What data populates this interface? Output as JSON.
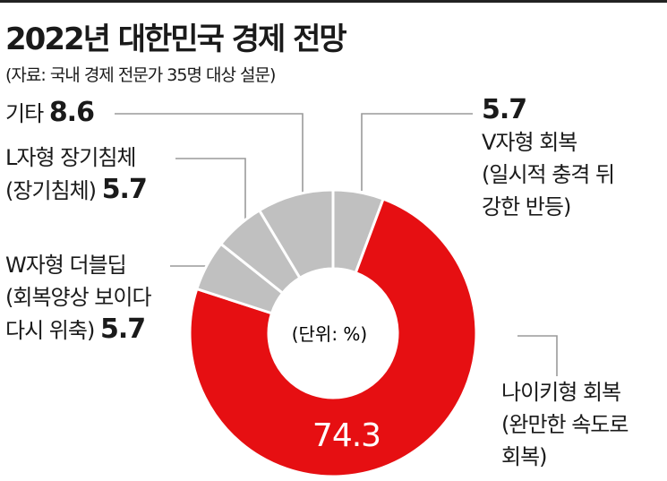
{
  "title": "2022년 대한민국 경제 전망",
  "subtitle": "(자료: 국내 경제 전문가 35명 대상 설문)",
  "colors": {
    "main": "#e60f12",
    "other": "#c0c0c0"
  },
  "chart_data": {
    "type": "donut",
    "unit_label": "(단위: %)",
    "slices": [
      {
        "value": 5.7,
        "value_label": "5.7",
        "name_lines": [
          "V자형 회복",
          "(일시적 충격 뒤",
          "강한 반등)"
        ]
      },
      {
        "value": 74.3,
        "value_label": "74.3",
        "name_lines": [
          "나이키형 회복",
          "(완만한 속도로",
          "회복)"
        ]
      },
      {
        "value": 5.7,
        "value_label": "5.7",
        "name_lines": [
          "W자형 더블딥",
          "(회복양상 보이다",
          "다시 위축)"
        ]
      },
      {
        "value": 5.7,
        "value_label": "5.7",
        "name_lines": [
          "L자형 장기침체",
          "(장기침체)"
        ]
      },
      {
        "value": 8.6,
        "value_label": "8.6",
        "name_lines": [
          "기타"
        ]
      }
    ]
  }
}
